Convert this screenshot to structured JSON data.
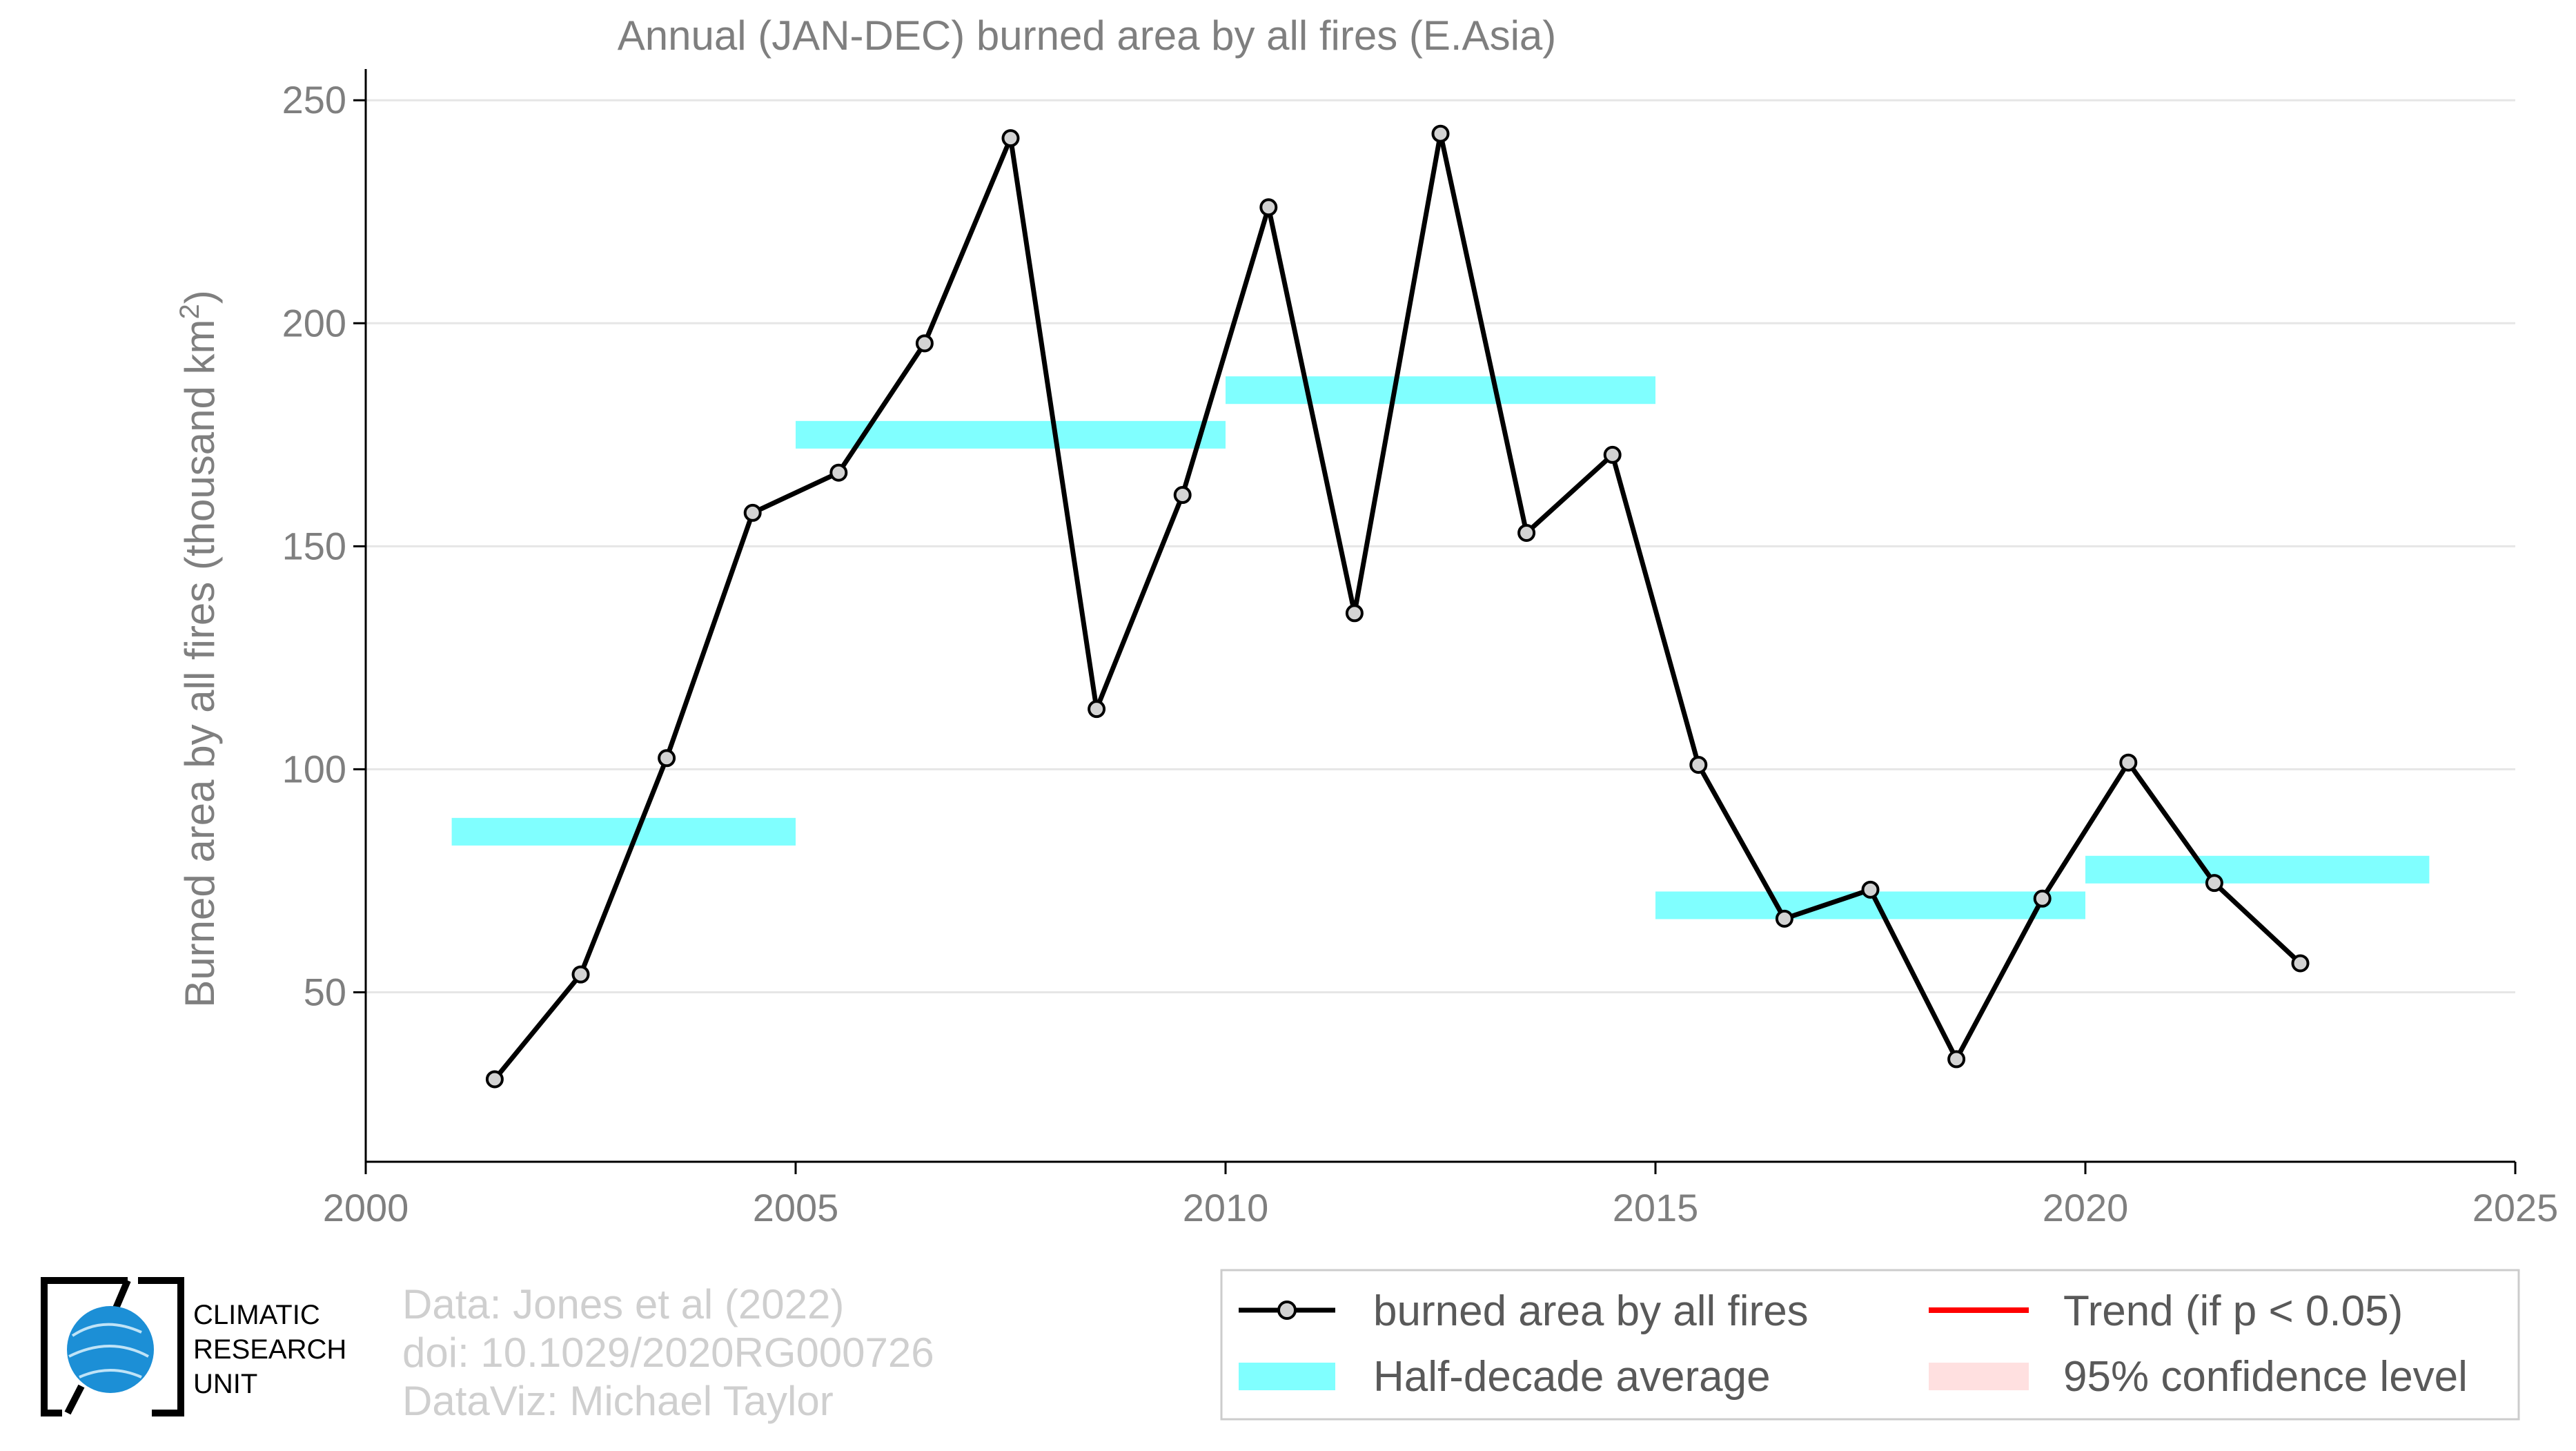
{
  "chart_data": {
    "type": "line",
    "title": "Annual (JAN-DEC) burned area by all fires (E.Asia)",
    "ylabel": "Burned area by all fires (thousand km",
    "ylabel_sup": "2",
    "ylabel_end": ")",
    "xlim": [
      2000,
      2025
    ],
    "ylim": [
      12,
      257
    ],
    "x_ticks": [
      2000,
      2005,
      2010,
      2015,
      2020,
      2025
    ],
    "y_ticks": [
      50,
      100,
      150,
      200,
      250
    ],
    "grid": true,
    "series": [
      {
        "name": "burned area by all fires",
        "color": "#000000",
        "marker_fill": "#d3d3d3",
        "x": [
          2001.5,
          2002.5,
          2003.5,
          2004.5,
          2005.5,
          2006.5,
          2007.5,
          2008.5,
          2009.5,
          2010.5,
          2011.5,
          2012.5,
          2013.5,
          2014.5,
          2015.5,
          2016.5,
          2017.5,
          2018.5,
          2019.5,
          2020.5,
          2021.5,
          2022.5
        ],
        "y": [
          30.5,
          54,
          102.5,
          157.5,
          166.5,
          195.5,
          241.5,
          113.5,
          161.5,
          226,
          135,
          242.5,
          153,
          170.5,
          101,
          66.5,
          73,
          35,
          71,
          101.5,
          74.5,
          56.5
        ]
      }
    ],
    "half_decade_average": {
      "name": "Half-decade average",
      "color": "#80ffff",
      "segments": [
        {
          "x0": 2001,
          "x1": 2005,
          "y": 86
        },
        {
          "x0": 2005,
          "x1": 2010,
          "y": 175
        },
        {
          "x0": 2010,
          "x1": 2015,
          "y": 185
        },
        {
          "x0": 2015,
          "x1": 2020,
          "y": 69.5
        },
        {
          "x0": 2020,
          "x1": 2024,
          "y": 77.5
        }
      ]
    },
    "legend": {
      "placement": "bottom-right",
      "entries": [
        {
          "label": "burned area by all fires",
          "kind": "line-marker",
          "color": "#000000"
        },
        {
          "label": "Trend (if p < 0.05)",
          "kind": "line",
          "color": "#ff0000"
        },
        {
          "label": "Half-decade average",
          "kind": "band",
          "color": "#80ffff"
        },
        {
          "label": "95% confidence level",
          "kind": "band",
          "color": "#ffe0e0"
        }
      ]
    }
  },
  "credits": {
    "line1": "Data: Jones et al (2022)",
    "line2": "doi: 10.1029/2020RG000726",
    "line3": "DataViz: Michael Taylor"
  },
  "logo": {
    "line1": "CLIMATIC",
    "line2": "RESEARCH",
    "line3": "UNIT"
  }
}
